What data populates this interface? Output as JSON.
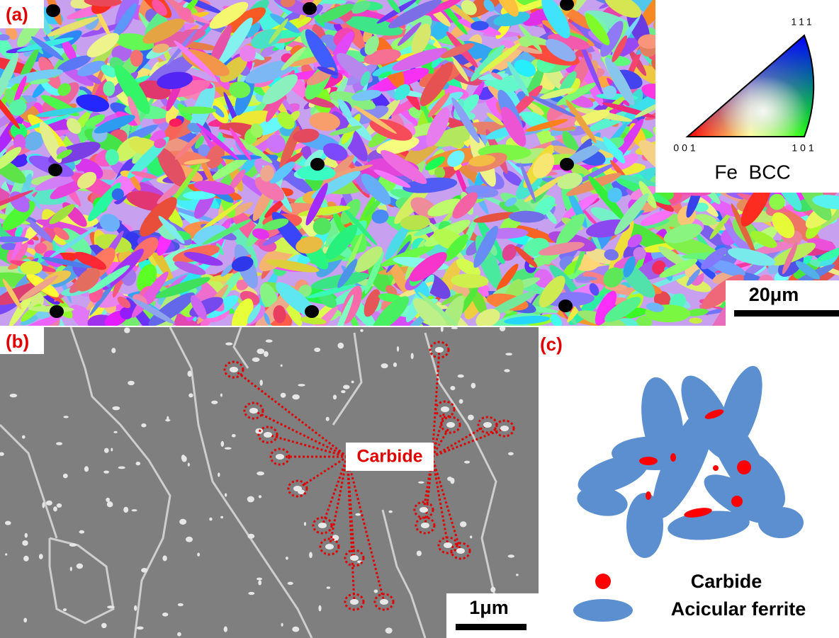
{
  "panels": {
    "a": {
      "label": "(a)",
      "ipf": {
        "corner_111": "111",
        "corner_001": "001",
        "corner_101": "101",
        "phase": "Fe  BCC"
      },
      "scale_bar": "20μm"
    },
    "b": {
      "label": "(b)",
      "annotation": "Carbide",
      "scale_bar": "1μm"
    },
    "c": {
      "label": "(c)",
      "legend": [
        {
          "label": "Carbide"
        },
        {
          "label": "Acicular ferrite"
        }
      ]
    }
  }
}
